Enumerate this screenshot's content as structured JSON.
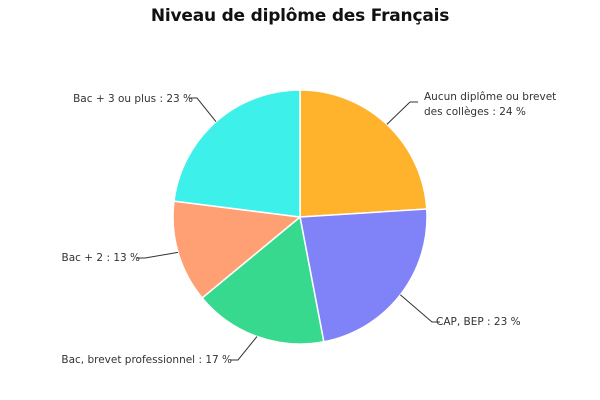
{
  "chart_data": {
    "type": "pie",
    "title": "Niveau de diplôme des Français",
    "slices": [
      {
        "label_lines": [
          "Aucun diplôme ou brevet",
          "des collèges : 24 %"
        ],
        "value": 24,
        "color": "#FFB22B"
      },
      {
        "label_lines": [
          "CAP, BEP : 23 %"
        ],
        "value": 23,
        "color": "#8083F8"
      },
      {
        "label_lines": [
          "Bac, brevet professionnel : 17 %"
        ],
        "value": 17,
        "color": "#36D98D"
      },
      {
        "label_lines": [
          "Bac + 2 : 13 %"
        ],
        "value": 13,
        "color": "#FFA074"
      },
      {
        "label_lines": [
          "Bac + 3 ou plus : 23 %"
        ],
        "value": 23,
        "color": "#3DF0EA"
      }
    ],
    "start_angle_deg": 0,
    "direction": "clockwise",
    "legend": "none"
  }
}
